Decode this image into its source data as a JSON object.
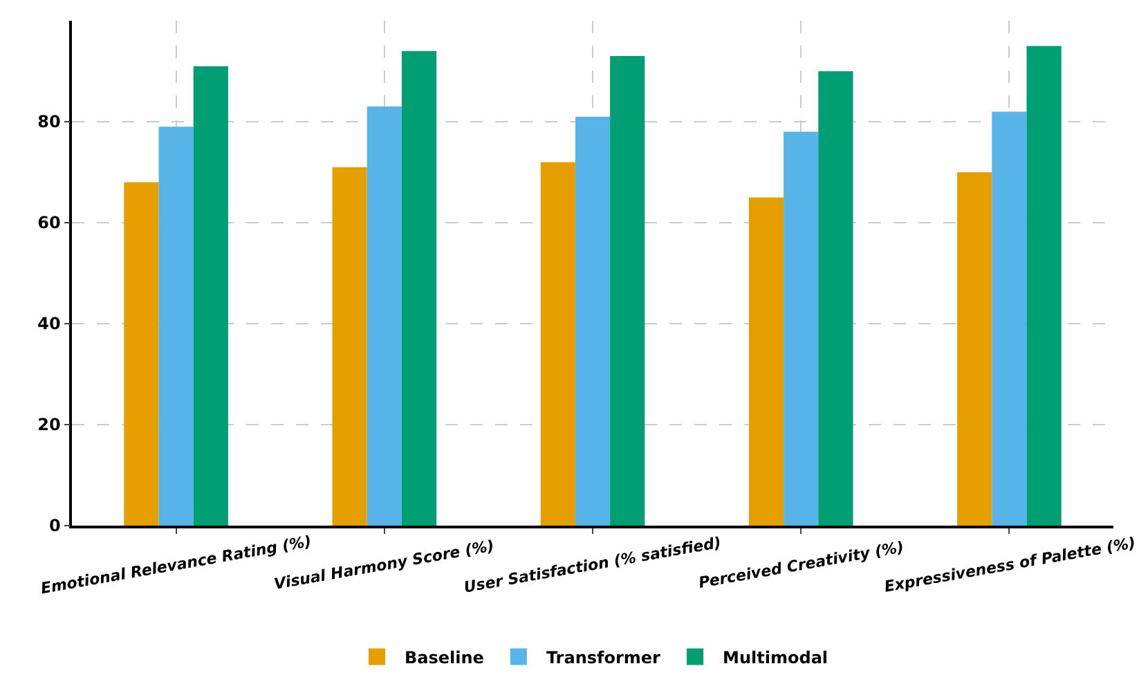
{
  "chart_data": {
    "type": "bar",
    "categories": [
      "Emotional Relevance Rating (%)",
      "Visual Harmony Score (%)",
      "User Satisfaction (% satisfied)",
      "Perceived Creativity (%)",
      "Expressiveness of Palette (%)"
    ],
    "series": [
      {
        "name": "Baseline",
        "color": "#e69f00",
        "values": [
          68,
          71,
          72,
          65,
          70
        ]
      },
      {
        "name": "Transformer",
        "color": "#56b4e9",
        "values": [
          79,
          83,
          81,
          78,
          82
        ]
      },
      {
        "name": "Multimodal",
        "color": "#009e73",
        "values": [
          91,
          94,
          93,
          90,
          95
        ]
      }
    ],
    "ylim": [
      0,
      100
    ],
    "yticks": [
      0,
      20,
      40,
      60,
      80
    ],
    "grid": true,
    "legend": "bottom"
  }
}
